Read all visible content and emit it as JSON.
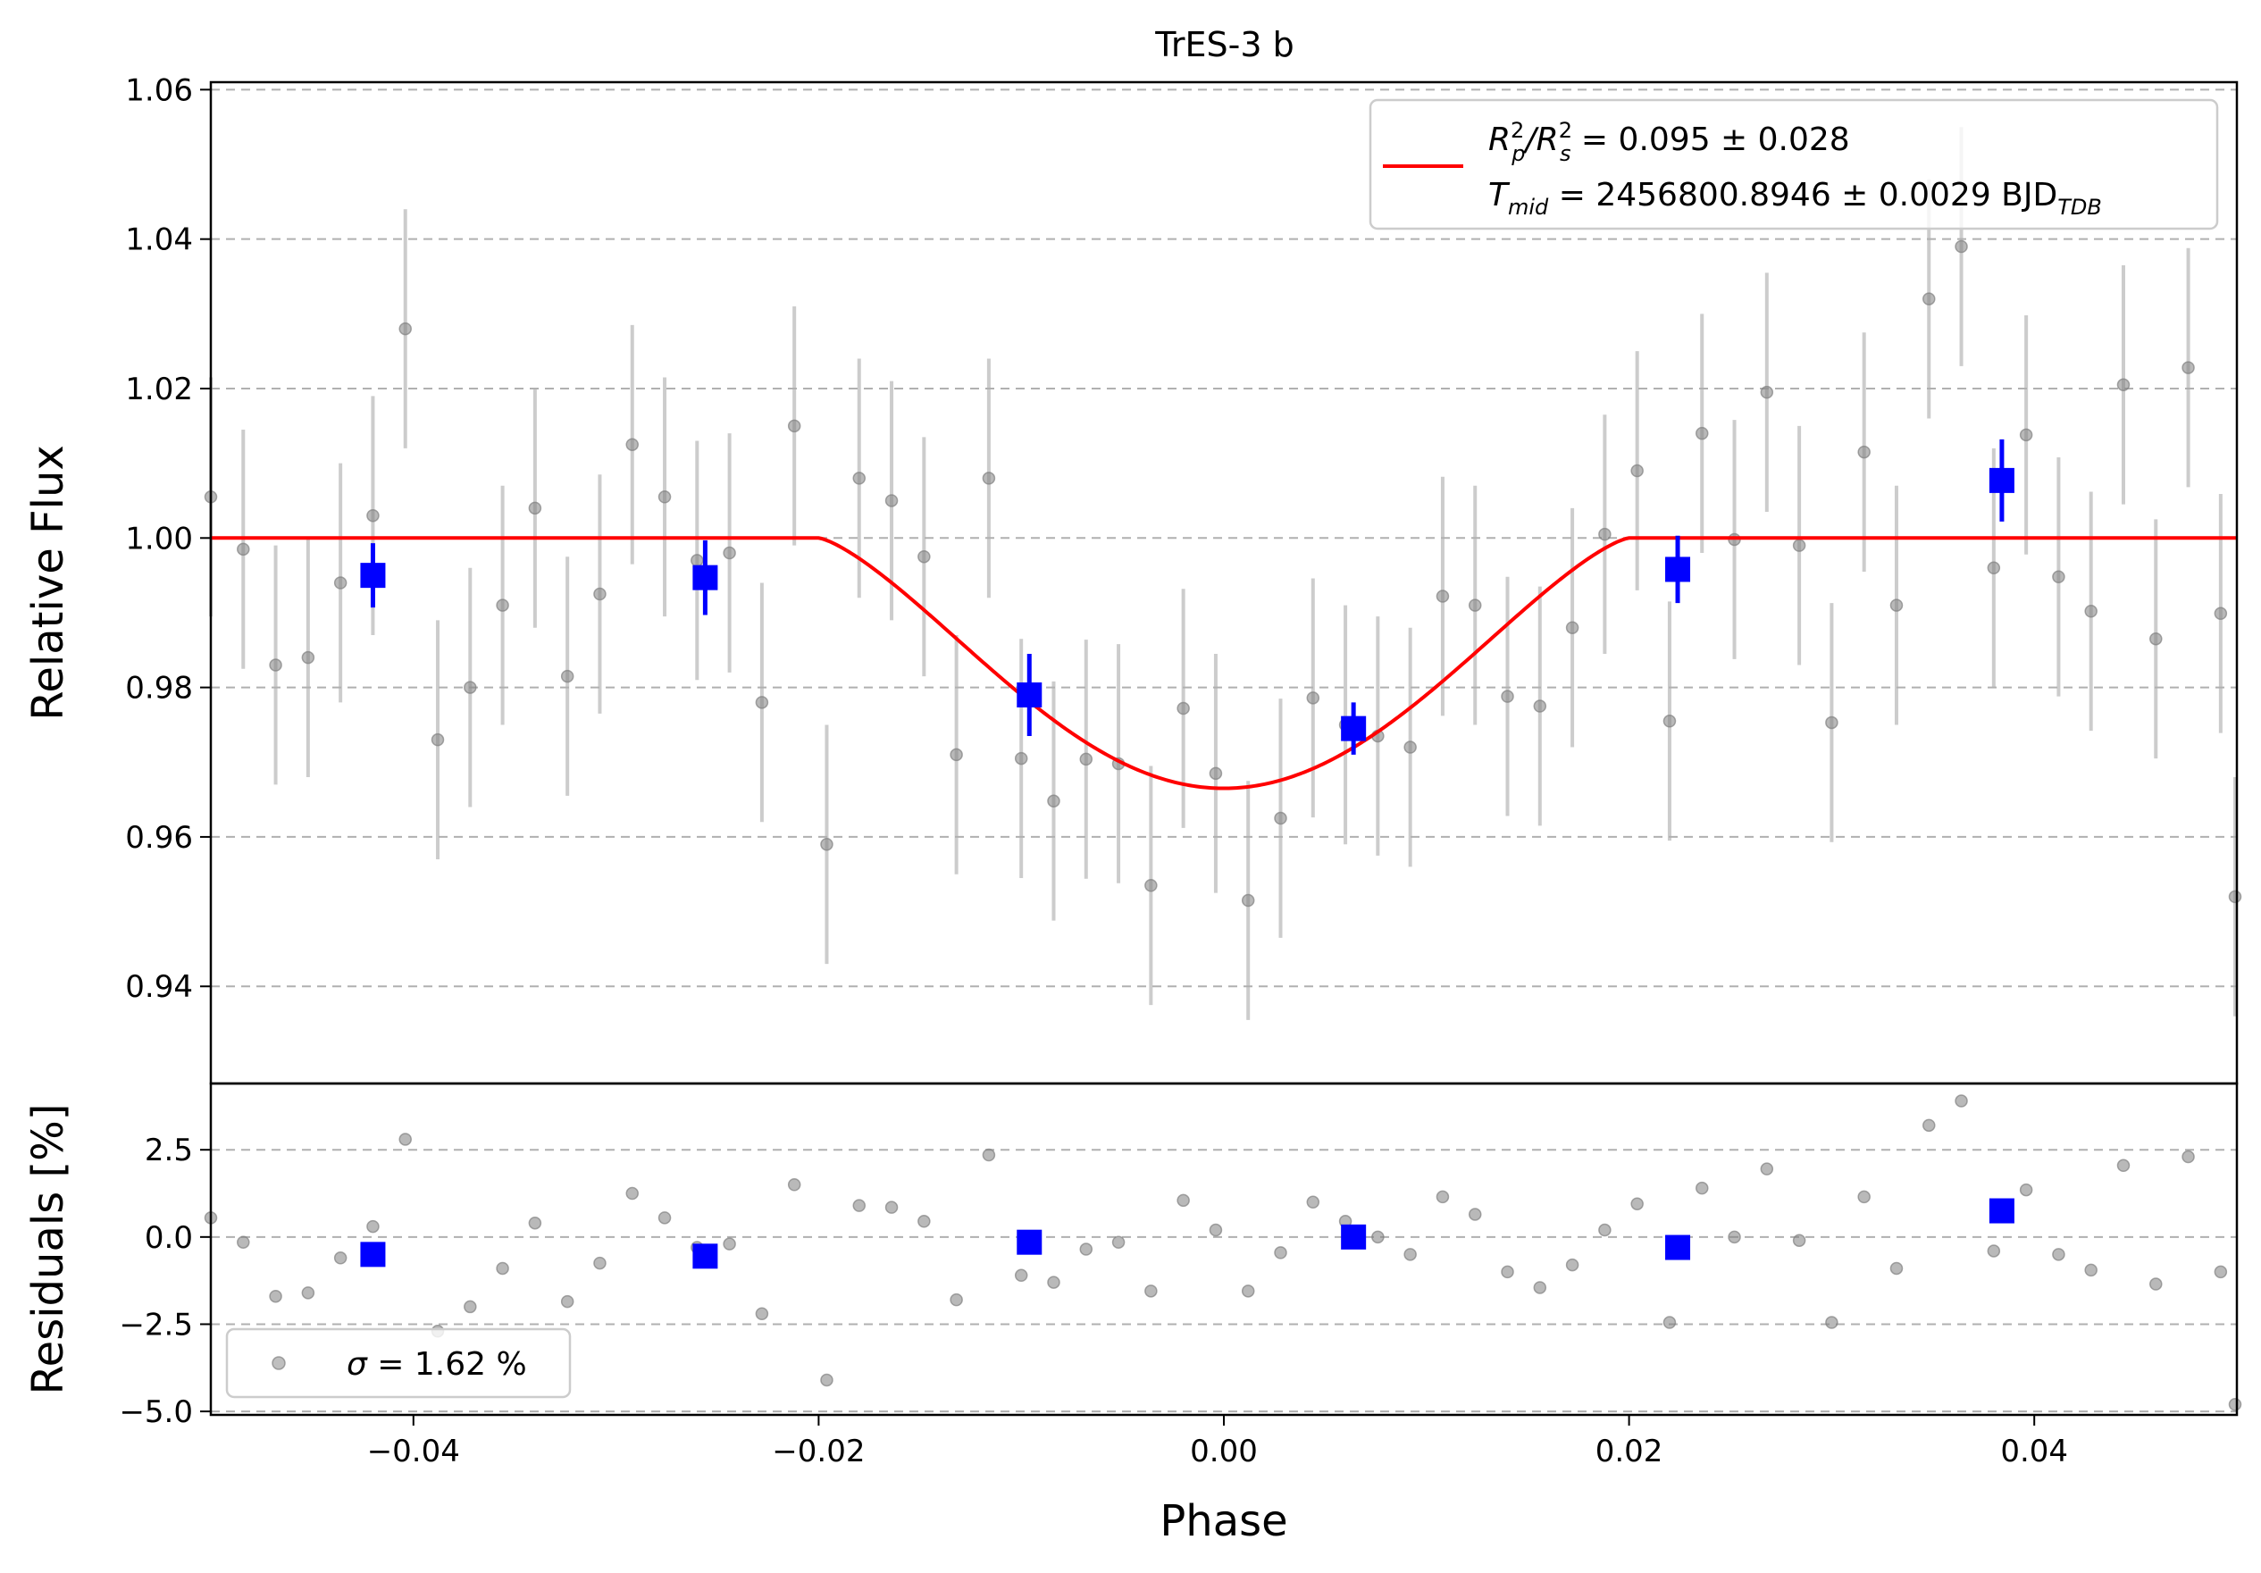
{
  "chart_data": [
    {
      "type": "scatter",
      "title": "TrES-3 b",
      "xlabel": "Phase",
      "ylabel": "Relative Flux",
      "xlim": [
        -0.05,
        0.05
      ],
      "ylim": [
        0.927,
        1.061
      ],
      "xticks": [
        -0.04,
        -0.02,
        0.0,
        0.02,
        0.04
      ],
      "xtick_labels": [
        "−0.04",
        "−0.02",
        "0.00",
        "0.02",
        "0.04"
      ],
      "yticks": [
        0.94,
        0.96,
        0.98,
        1.0,
        1.02,
        1.04,
        1.06
      ],
      "ytick_labels": [
        "0.94",
        "0.96",
        "0.98",
        "1.00",
        "1.02",
        "1.04",
        "1.06"
      ],
      "grid": "horizontal dashed",
      "legend_placement": "top-right",
      "model": {
        "name": "R²p/R²s = 0.095 ± 0.028 ; Tmid = 2456800.8946 ± 0.0029 BJD_TDB",
        "color": "#ff0000",
        "baseline": 1.0,
        "depth": 0.0335,
        "t14": 0.04,
        "t12": 0.016
      },
      "legend_line1": {
        "a": "R",
        "a_sup": "2",
        "a_sub": "p",
        "sep": "/R",
        "b_sup": "2",
        "b_sub": "s",
        "value": " = 0.095 ± 0.028"
      },
      "legend_line2": {
        "a": "T",
        "a_sub": "mid",
        "value": " = 2456800.8946 ± 0.0029 BJD",
        "unit_sub": "TDB"
      },
      "data_points": {
        "color": "#808080",
        "x": [
          -0.05,
          -0.0484,
          -0.0468,
          -0.0452,
          -0.0436,
          -0.042,
          -0.0404,
          -0.0388,
          -0.0372,
          -0.0356,
          -0.034,
          -0.0324,
          -0.0308,
          -0.0292,
          -0.0276,
          -0.026,
          -0.0244,
          -0.0228,
          -0.0212,
          -0.0196,
          -0.018,
          -0.0164,
          -0.0148,
          -0.0132,
          -0.0116,
          -0.01,
          -0.0084,
          -0.0068,
          -0.0052,
          -0.0036,
          -0.002,
          -0.0004,
          0.0012,
          0.0028,
          0.0044,
          0.006,
          0.0076,
          0.0092,
          0.0108,
          0.0124,
          0.014,
          0.0156,
          0.0172,
          0.0188,
          0.0204,
          0.022,
          0.0236,
          0.0252,
          0.0268,
          0.0284,
          0.03,
          0.0316,
          0.0332,
          0.0348,
          0.0364,
          0.038,
          0.0396,
          0.0412,
          0.0428,
          0.0444,
          0.046,
          0.0476,
          0.0492
        ],
        "y": [
          1.0055,
          0.9985,
          0.983,
          0.984,
          0.994,
          1.003,
          1.028,
          0.973,
          0.98,
          0.991,
          1.004,
          0.9815,
          0.9925,
          1.0125,
          1.0055,
          0.997,
          0.998,
          0.978,
          1.015,
          0.959,
          1.008,
          1.005,
          0.9975,
          0.971,
          1.008,
          0.9705,
          0.9648,
          0.9704,
          0.9698,
          0.9535,
          0.9772,
          0.9685,
          0.9515,
          0.9625,
          0.9786,
          0.975,
          0.9735,
          0.972,
          0.9922,
          0.991,
          0.9788,
          0.9775,
          0.988,
          1.0005,
          1.009,
          0.9755,
          1.014,
          0.9998,
          1.0195,
          0.999,
          0.9753,
          1.0115,
          0.991,
          1.032,
          1.039,
          0.996,
          1.0138,
          0.9948,
          0.9902,
          1.0205,
          0.9865,
          1.0228,
          0.9899
        ],
        "err": 0.016
      },
      "binned_points": {
        "color": "#0000ff",
        "x": [
          -0.042,
          -0.0256,
          -0.0096,
          0.0064,
          0.0224,
          0.0384
        ],
        "y": [
          0.995,
          0.9947,
          0.979,
          0.9745,
          0.9958,
          1.0077
        ],
        "err": [
          0.0043,
          0.005,
          0.0055,
          0.0035,
          0.0045,
          0.0055
        ]
      }
    },
    {
      "type": "scatter",
      "ylabel": "Residuals [%]",
      "xlabel": "Phase",
      "xlim": [
        -0.05,
        0.05
      ],
      "ylim": [
        -5.1,
        4.4
      ],
      "yticks": [
        -5.0,
        -2.5,
        0.0,
        2.5
      ],
      "ytick_labels": [
        "−5.0",
        "−2.5",
        "0.0",
        "2.5"
      ],
      "grid": "horizontal dashed",
      "legend_placement": "bottom-left",
      "legend_label_symbol": "σ",
      "legend_label_value": " = 1.62 %",
      "residual_points": {
        "color": "#808080",
        "y": [
          0.55,
          -0.15,
          -1.7,
          -1.6,
          -0.6,
          0.3,
          2.8,
          -2.7,
          -2.0,
          -0.9,
          0.4,
          -1.85,
          -0.75,
          1.25,
          0.55,
          -0.3,
          -0.2,
          -2.2,
          1.5,
          -4.1,
          0.9,
          0.85,
          0.45,
          -1.8,
          2.35,
          -1.1,
          -1.3,
          -0.35,
          -0.15,
          -1.55,
          1.05,
          0.2,
          -1.55,
          -0.45,
          1.0,
          0.45,
          0.0,
          -0.5,
          1.15,
          0.65,
          -1.0,
          -1.45,
          -0.8,
          0.2,
          0.95,
          -2.45,
          1.4,
          0.0,
          1.95,
          -0.1,
          -2.45,
          1.15,
          -0.9,
          3.2,
          3.9,
          -0.4,
          1.35,
          -0.5,
          -0.95,
          2.05,
          -1.35,
          2.3,
          -1.0
        ]
      },
      "binned_residuals": {
        "color": "#0000ff",
        "x": [
          -0.042,
          -0.0256,
          -0.0096,
          0.0064,
          0.0224,
          0.0384
        ],
        "y": [
          -0.5,
          -0.55,
          -0.15,
          0.0,
          -0.3,
          0.75
        ]
      }
    }
  ],
  "edge_points": {
    "top_x": 0.05,
    "top_y": 0.952,
    "bottom_y": -4.8
  }
}
